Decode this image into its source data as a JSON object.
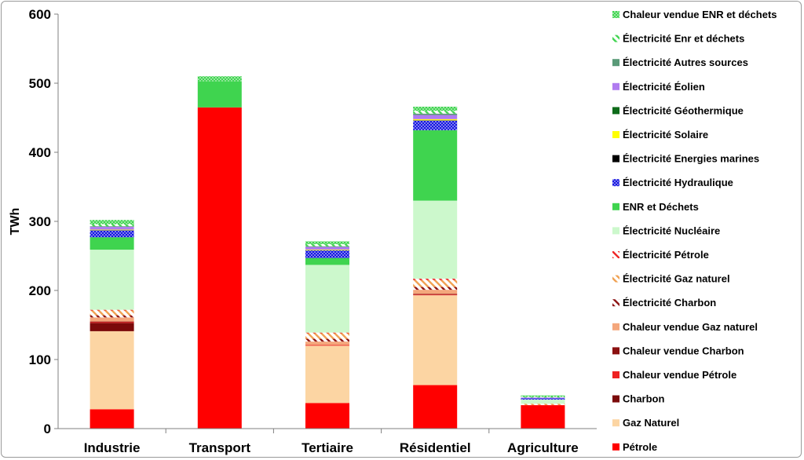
{
  "chart_data": {
    "type": "bar",
    "stacked": true,
    "title": "",
    "xlabel": "",
    "ylabel": "TWh",
    "ylim": [
      0,
      600
    ],
    "yticks": [
      0,
      100,
      200,
      300,
      400,
      500,
      600
    ],
    "grid": false,
    "legend_position": "right",
    "categories": [
      "Industrie",
      "Transport",
      "Tertiaire",
      "Résidentiel",
      "Agriculture"
    ],
    "series": [
      {
        "name": "Pétrole",
        "color": "#ff0000",
        "pattern": "solid",
        "values": [
          28,
          465,
          37,
          63,
          34
        ]
      },
      {
        "name": "Gaz Naturel",
        "color": "#fcd5a3",
        "pattern": "solid",
        "values": [
          113,
          0,
          83,
          130,
          0
        ]
      },
      {
        "name": "Charbon",
        "color": "#7b0a0a",
        "pattern": "solid",
        "values": [
          12,
          0,
          0,
          0,
          0
        ]
      },
      {
        "name": "Chaleur vendue Pétrole",
        "color": "#ee2222",
        "pattern": "solid",
        "values": [
          1,
          0,
          1,
          1,
          0
        ]
      },
      {
        "name": "Chaleur vendue Charbon",
        "color": "#8b1010",
        "pattern": "solid",
        "values": [
          1,
          0,
          0,
          1,
          0
        ]
      },
      {
        "name": "Chaleur vendue Gaz naturel",
        "color": "#f4a77c",
        "pattern": "solid",
        "values": [
          6,
          0,
          5,
          6,
          0
        ]
      },
      {
        "name": "Électricité Charbon",
        "color": "#8b1010",
        "pattern": "diag",
        "values": [
          3,
          0,
          4,
          4,
          0
        ]
      },
      {
        "name": "Électricité Gaz naturel",
        "color": "#f0a050",
        "pattern": "diag",
        "values": [
          7,
          0,
          8,
          10,
          2
        ]
      },
      {
        "name": "Électricité Pétrole",
        "color": "#ee2222",
        "pattern": "diag",
        "values": [
          1,
          0,
          1,
          2,
          0
        ]
      },
      {
        "name": "Électricité Nucléaire",
        "color": "#ccf8cc",
        "pattern": "solid",
        "values": [
          87,
          0,
          98,
          113,
          6
        ]
      },
      {
        "name": "ENR et Déchets",
        "color": "#3fd44f",
        "pattern": "solid",
        "values": [
          18,
          38,
          10,
          102,
          0
        ]
      },
      {
        "name": "Électricité Hydraulique",
        "color": "#1515e0",
        "pattern": "dots",
        "values": [
          10,
          0,
          11,
          14,
          2
        ]
      },
      {
        "name": "Électricité Energies marines",
        "color": "#000000",
        "pattern": "solid",
        "values": [
          0,
          0,
          0,
          0,
          0
        ]
      },
      {
        "name": "Électricité Solaire",
        "color": "#ffff00",
        "pattern": "solid",
        "values": [
          1,
          0,
          1,
          2,
          0
        ]
      },
      {
        "name": "Électricité Géothermique",
        "color": "#0e6b1a",
        "pattern": "solid",
        "values": [
          0,
          0,
          0,
          0,
          0
        ]
      },
      {
        "name": "Électricité Éolien",
        "color": "#b07cf0",
        "pattern": "solid",
        "values": [
          4,
          0,
          4,
          6,
          1
        ]
      },
      {
        "name": "Électricité Autres sources",
        "color": "#5a9a78",
        "pattern": "solid",
        "values": [
          1,
          0,
          1,
          2,
          0
        ]
      },
      {
        "name": "Électricité Enr et déchets",
        "color": "#3fd44f",
        "pattern": "diag",
        "values": [
          3,
          0,
          3,
          4,
          1
        ]
      },
      {
        "name": "Chaleur vendue ENR et déchets",
        "color": "#3fd44f",
        "pattern": "dots",
        "values": [
          6,
          7,
          4,
          6,
          2
        ]
      }
    ]
  }
}
